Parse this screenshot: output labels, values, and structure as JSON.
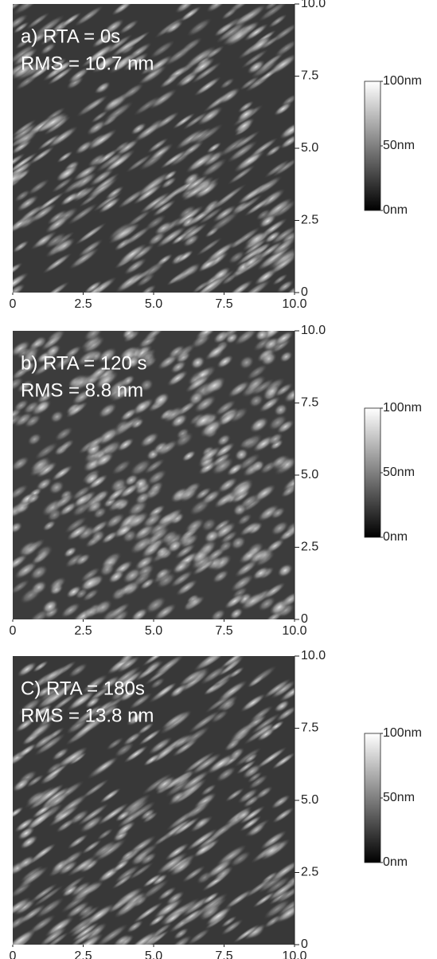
{
  "chart_data": [
    {
      "type": "image",
      "title": "a) RTA = 0s",
      "subtitle": "RMS = 10.7 nm",
      "xlim": [
        0,
        10
      ],
      "xticks": [
        0,
        2.5,
        {
          "value": 5,
          "label": "5.0"
        },
        7.5,
        {
          "value": 10,
          "label": "10.0"
        }
      ],
      "ylim": [
        0,
        10
      ],
      "yticks": [
        0,
        2.5,
        {
          "value": 5,
          "label": "5.0"
        },
        7.5,
        {
          "value": 10,
          "label": "10.0"
        }
      ],
      "colorbar_lim": [
        0,
        100
      ],
      "colorbar_ticks": [
        {
          "value": 0,
          "label": "0nm"
        },
        {
          "value": 50,
          "label": "50nm"
        },
        {
          "value": 100,
          "label": "100nm"
        }
      ]
    },
    {
      "type": "image",
      "title": "b) RTA = 120 s",
      "subtitle": "RMS = 8.8 nm",
      "xlim": [
        0,
        10
      ],
      "xticks": [
        0,
        2.5,
        {
          "value": 5,
          "label": "5.0"
        },
        7.5,
        {
          "value": 10,
          "label": "10.0"
        }
      ],
      "ylim": [
        0,
        10
      ],
      "yticks": [
        0,
        2.5,
        {
          "value": 5,
          "label": "5.0"
        },
        7.5,
        {
          "value": 10,
          "label": "10.0"
        }
      ],
      "colorbar_lim": [
        0,
        100
      ],
      "colorbar_ticks": [
        {
          "value": 0,
          "label": "0nm"
        },
        {
          "value": 50,
          "label": "50nm"
        },
        {
          "value": 100,
          "label": "100nm"
        }
      ]
    },
    {
      "type": "image",
      "title": "C) RTA = 180s",
      "subtitle": "RMS = 13.8 nm",
      "xlim": [
        0,
        10
      ],
      "xticks": [
        0,
        2.5,
        {
          "value": 5,
          "label": "5.0"
        },
        7.5,
        {
          "value": 10,
          "label": "10.0"
        }
      ],
      "ylim": [
        0,
        10
      ],
      "yticks": [
        0,
        2.5,
        {
          "value": 5,
          "label": "5.0"
        },
        7.5,
        {
          "value": 10,
          "label": "10.0"
        }
      ],
      "colorbar_lim": [
        0,
        100
      ],
      "colorbar_ticks": [
        {
          "value": 0,
          "label": "0nm"
        },
        {
          "value": 50,
          "label": "50nm"
        },
        {
          "value": 100,
          "label": "100nm"
        }
      ]
    }
  ]
}
